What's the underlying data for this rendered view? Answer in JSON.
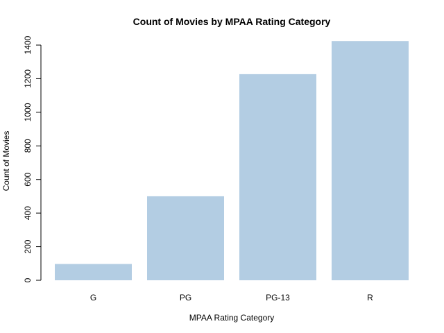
{
  "chart_data": {
    "type": "bar",
    "title": "Count of Movies by MPAA Rating Category",
    "xlabel": "MPAA Rating Category",
    "ylabel": "Count of Movies",
    "categories": [
      "G",
      "PG",
      "PG-13",
      "R"
    ],
    "values": [
      97,
      500,
      1227,
      1424
    ],
    "ylim": [
      0,
      1400
    ],
    "yticks": [
      0,
      200,
      400,
      600,
      800,
      1000,
      1200,
      1400
    ],
    "bar_color": "#b3cde3",
    "grid": false,
    "legend": "none"
  }
}
